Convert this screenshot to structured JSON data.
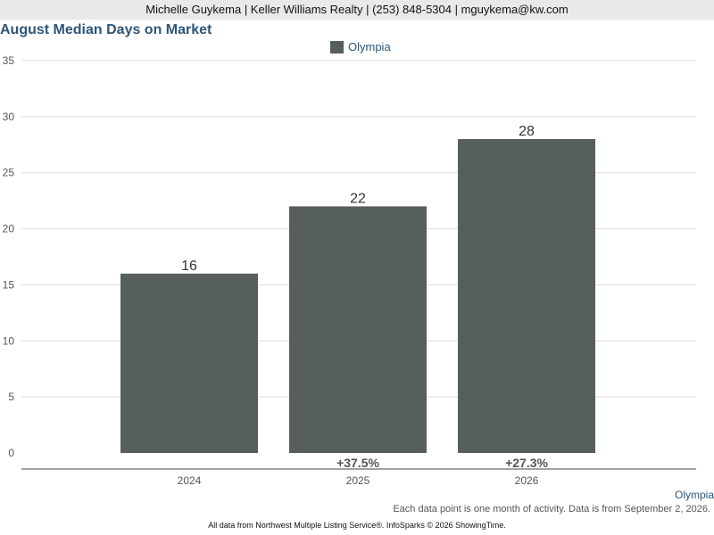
{
  "header": {
    "agent_line": "Michelle Guykema | Keller Williams Realty | (253) 848-5304 | mguykema@kw.com"
  },
  "colors": {
    "bar": "#565f5c",
    "title": "#2e5677",
    "grid": "#dddddd",
    "axis_text": "#555555"
  },
  "chart_data": {
    "type": "bar",
    "title": "August Median Days on Market",
    "categories": [
      "2024",
      "2025",
      "2026"
    ],
    "series": [
      {
        "name": "Olympia",
        "values": [
          16,
          22,
          28
        ]
      }
    ],
    "change_labels": [
      "",
      "+37.5%",
      "+27.3%"
    ],
    "ylim": [
      0,
      35
    ],
    "yticks": [
      0,
      5,
      10,
      15,
      20,
      25,
      30,
      35
    ],
    "grid": true,
    "legend": "top-center"
  },
  "footer": {
    "series_label": "Olympia",
    "note": "Each data point is one month of activity. Data is from September 2, 2026.",
    "source": "All data from Northwest Multiple Listing Service®. InfoSparks © 2026 ShowingTime."
  }
}
